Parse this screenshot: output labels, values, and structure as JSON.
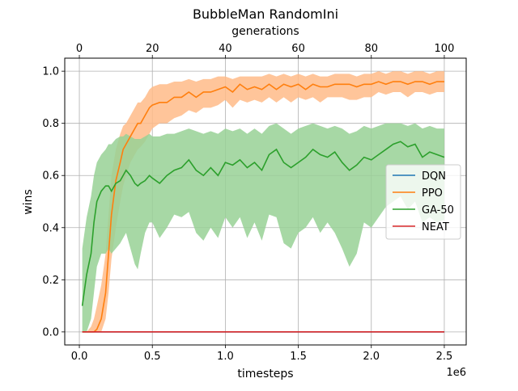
{
  "chart_data": {
    "type": "line",
    "title": "BubbleMan RandomIni",
    "xlabel": "timesteps",
    "x_offset_text": "1e6",
    "secondary_xlabel": "generations",
    "ylabel": "wins",
    "xlim": [
      -0.1,
      2.65
    ],
    "ylim": [
      -0.05,
      1.05
    ],
    "secondary_xlim": [
      -4,
      106
    ],
    "x_ticks": [
      0,
      0.5,
      1.0,
      1.5,
      2.0,
      2.5
    ],
    "x_tick_labels": [
      "0.0",
      "0.5",
      "1.0",
      "1.5",
      "2.0",
      "2.5"
    ],
    "y_ticks": [
      0,
      0.2,
      0.4,
      0.6,
      0.8,
      1.0
    ],
    "y_tick_labels": [
      "0.0",
      "0.2",
      "0.4",
      "0.6",
      "0.8",
      "1.0"
    ],
    "secondary_x_ticks": [
      0,
      20,
      40,
      60,
      80,
      100
    ],
    "secondary_x_tick_labels": [
      "0",
      "20",
      "40",
      "60",
      "80",
      "100"
    ],
    "grid": true,
    "legend_position": "center-right",
    "series": [
      {
        "name": "DQN",
        "color": "#1f77b4",
        "x": [
          0.02,
          2.5
        ],
        "y": [
          0.0,
          0.0
        ]
      },
      {
        "name": "PPO",
        "color": "#ff7f0e",
        "band_color": "#ffbb88",
        "x": [
          0.02,
          0.05,
          0.08,
          0.1,
          0.12,
          0.15,
          0.18,
          0.2,
          0.22,
          0.25,
          0.28,
          0.3,
          0.32,
          0.35,
          0.38,
          0.4,
          0.42,
          0.45,
          0.48,
          0.5,
          0.55,
          0.6,
          0.65,
          0.7,
          0.75,
          0.8,
          0.85,
          0.9,
          0.95,
          1.0,
          1.05,
          1.1,
          1.15,
          1.2,
          1.25,
          1.3,
          1.35,
          1.4,
          1.45,
          1.5,
          1.55,
          1.6,
          1.65,
          1.7,
          1.75,
          1.8,
          1.85,
          1.9,
          1.95,
          2.0,
          2.05,
          2.1,
          2.15,
          2.2,
          2.25,
          2.3,
          2.35,
          2.4,
          2.45,
          2.5
        ],
        "y": [
          0.0,
          0.0,
          0.0,
          0.0,
          0.01,
          0.05,
          0.15,
          0.3,
          0.45,
          0.58,
          0.65,
          0.7,
          0.72,
          0.75,
          0.78,
          0.8,
          0.8,
          0.83,
          0.86,
          0.87,
          0.88,
          0.88,
          0.9,
          0.9,
          0.92,
          0.9,
          0.92,
          0.92,
          0.93,
          0.94,
          0.92,
          0.95,
          0.93,
          0.94,
          0.93,
          0.95,
          0.93,
          0.95,
          0.94,
          0.95,
          0.93,
          0.95,
          0.94,
          0.94,
          0.95,
          0.95,
          0.95,
          0.94,
          0.95,
          0.95,
          0.96,
          0.95,
          0.96,
          0.96,
          0.95,
          0.96,
          0.96,
          0.95,
          0.96,
          0.96
        ],
        "lower": [
          0.0,
          0.0,
          0.0,
          0.0,
          0.0,
          0.0,
          0.05,
          0.15,
          0.28,
          0.4,
          0.5,
          0.56,
          0.6,
          0.65,
          0.68,
          0.7,
          0.71,
          0.73,
          0.76,
          0.78,
          0.8,
          0.8,
          0.82,
          0.83,
          0.85,
          0.84,
          0.86,
          0.86,
          0.87,
          0.89,
          0.86,
          0.89,
          0.88,
          0.89,
          0.88,
          0.9,
          0.88,
          0.9,
          0.88,
          0.9,
          0.89,
          0.9,
          0.88,
          0.9,
          0.9,
          0.9,
          0.89,
          0.89,
          0.9,
          0.9,
          0.92,
          0.91,
          0.92,
          0.92,
          0.9,
          0.92,
          0.92,
          0.91,
          0.92,
          0.92
        ],
        "upper": [
          0.0,
          0.0,
          0.02,
          0.05,
          0.1,
          0.18,
          0.3,
          0.45,
          0.6,
          0.7,
          0.76,
          0.79,
          0.8,
          0.83,
          0.86,
          0.88,
          0.88,
          0.9,
          0.93,
          0.94,
          0.95,
          0.95,
          0.96,
          0.96,
          0.97,
          0.96,
          0.97,
          0.97,
          0.98,
          0.98,
          0.97,
          0.98,
          0.98,
          0.98,
          0.98,
          0.99,
          0.98,
          0.99,
          0.98,
          0.99,
          0.98,
          0.99,
          0.98,
          0.98,
          0.99,
          0.99,
          0.99,
          0.98,
          0.99,
          0.99,
          1.0,
          0.99,
          1.0,
          1.0,
          0.99,
          1.0,
          1.0,
          0.99,
          1.0,
          1.0
        ]
      },
      {
        "name": "GA-50",
        "color": "#2ca02c",
        "band_color": "#98d195",
        "x": [
          0.02,
          0.05,
          0.08,
          0.1,
          0.12,
          0.15,
          0.18,
          0.2,
          0.22,
          0.25,
          0.28,
          0.3,
          0.32,
          0.35,
          0.38,
          0.4,
          0.42,
          0.45,
          0.48,
          0.5,
          0.55,
          0.6,
          0.65,
          0.7,
          0.75,
          0.8,
          0.85,
          0.9,
          0.95,
          1.0,
          1.05,
          1.1,
          1.15,
          1.2,
          1.25,
          1.3,
          1.35,
          1.4,
          1.45,
          1.5,
          1.55,
          1.6,
          1.65,
          1.7,
          1.75,
          1.8,
          1.85,
          1.9,
          1.95,
          2.0,
          2.05,
          2.1,
          2.15,
          2.2,
          2.25,
          2.3,
          2.35,
          2.4,
          2.45,
          2.5
        ],
        "y": [
          0.1,
          0.22,
          0.3,
          0.42,
          0.5,
          0.54,
          0.56,
          0.56,
          0.54,
          0.57,
          0.58,
          0.6,
          0.62,
          0.6,
          0.57,
          0.56,
          0.57,
          0.58,
          0.6,
          0.59,
          0.57,
          0.6,
          0.62,
          0.63,
          0.66,
          0.62,
          0.6,
          0.63,
          0.6,
          0.65,
          0.64,
          0.66,
          0.63,
          0.65,
          0.62,
          0.68,
          0.7,
          0.65,
          0.63,
          0.65,
          0.67,
          0.7,
          0.68,
          0.67,
          0.69,
          0.65,
          0.62,
          0.64,
          0.67,
          0.66,
          0.68,
          0.7,
          0.72,
          0.73,
          0.71,
          0.72,
          0.67,
          0.69,
          0.68,
          0.67
        ],
        "lower": [
          0.0,
          0.0,
          0.05,
          0.15,
          0.25,
          0.3,
          0.3,
          0.32,
          0.3,
          0.32,
          0.34,
          0.36,
          0.38,
          0.32,
          0.26,
          0.24,
          0.3,
          0.38,
          0.42,
          0.42,
          0.36,
          0.4,
          0.45,
          0.44,
          0.46,
          0.38,
          0.35,
          0.4,
          0.36,
          0.44,
          0.4,
          0.44,
          0.36,
          0.42,
          0.35,
          0.45,
          0.44,
          0.34,
          0.32,
          0.38,
          0.4,
          0.44,
          0.38,
          0.42,
          0.38,
          0.32,
          0.25,
          0.3,
          0.42,
          0.4,
          0.44,
          0.48,
          0.5,
          0.52,
          0.47,
          0.5,
          0.42,
          0.44,
          0.42,
          0.43
        ],
        "upper": [
          0.32,
          0.44,
          0.52,
          0.6,
          0.65,
          0.68,
          0.7,
          0.72,
          0.72,
          0.74,
          0.75,
          0.75,
          0.76,
          0.75,
          0.74,
          0.74,
          0.74,
          0.75,
          0.76,
          0.75,
          0.75,
          0.76,
          0.76,
          0.77,
          0.78,
          0.77,
          0.76,
          0.77,
          0.76,
          0.78,
          0.77,
          0.78,
          0.76,
          0.78,
          0.76,
          0.79,
          0.8,
          0.78,
          0.76,
          0.78,
          0.79,
          0.8,
          0.79,
          0.78,
          0.79,
          0.78,
          0.76,
          0.77,
          0.79,
          0.78,
          0.79,
          0.8,
          0.8,
          0.8,
          0.79,
          0.8,
          0.78,
          0.79,
          0.78,
          0.78
        ]
      },
      {
        "name": "NEAT",
        "color": "#d62728",
        "x": [
          0.02,
          2.5
        ],
        "y": [
          0.0,
          0.0
        ]
      }
    ]
  }
}
